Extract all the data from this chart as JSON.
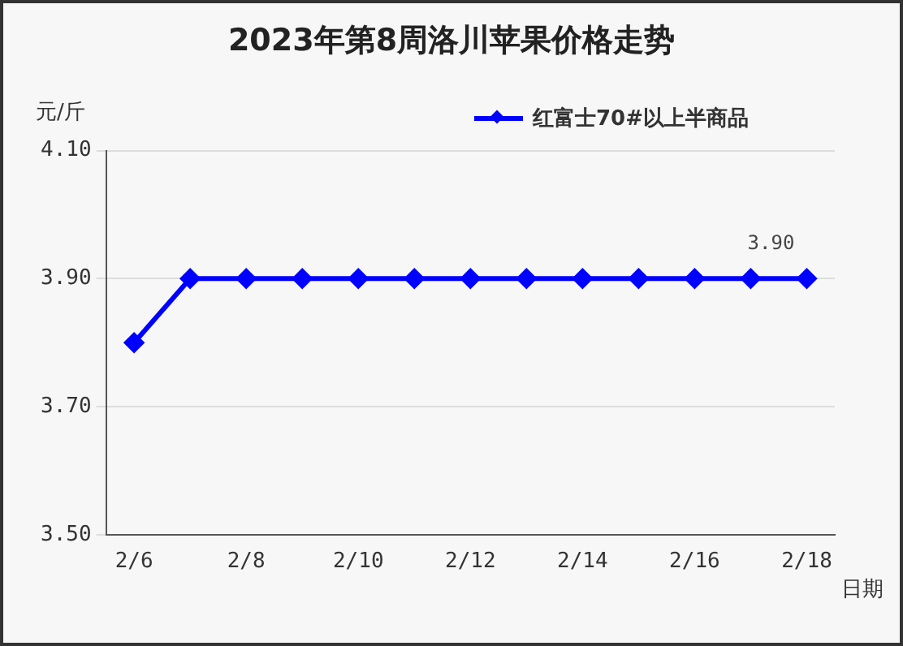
{
  "chart_data": {
    "type": "line",
    "title": "2023年第8周洛川苹果价格走势",
    "xlabel": "日期",
    "ylabel": "元/斤",
    "categories": [
      "2/6",
      null,
      "2/8",
      null,
      "2/10",
      null,
      "2/12",
      null,
      "2/14",
      null,
      "2/16",
      null,
      "2/18"
    ],
    "series": [
      {
        "name": "红富士70#以上半商品",
        "color": "#0000ff",
        "values": [
          3.8,
          3.9,
          3.9,
          3.9,
          3.9,
          3.9,
          3.9,
          3.9,
          3.9,
          3.9,
          3.9,
          3.9,
          3.9
        ],
        "value_labels": [
          null,
          null,
          null,
          null,
          null,
          null,
          null,
          null,
          null,
          null,
          null,
          null,
          "3.90"
        ]
      }
    ],
    "ylim": [
      3.5,
      4.1
    ],
    "yticks": [
      {
        "value": 3.5,
        "label": "3.50"
      },
      {
        "value": 3.7,
        "label": "3.70"
      },
      {
        "value": 3.9,
        "label": "3.90"
      },
      {
        "value": 4.1,
        "label": "4.10"
      }
    ],
    "grid": "y",
    "legend": "top right",
    "marker": "diamond",
    "line_style": "solid"
  }
}
